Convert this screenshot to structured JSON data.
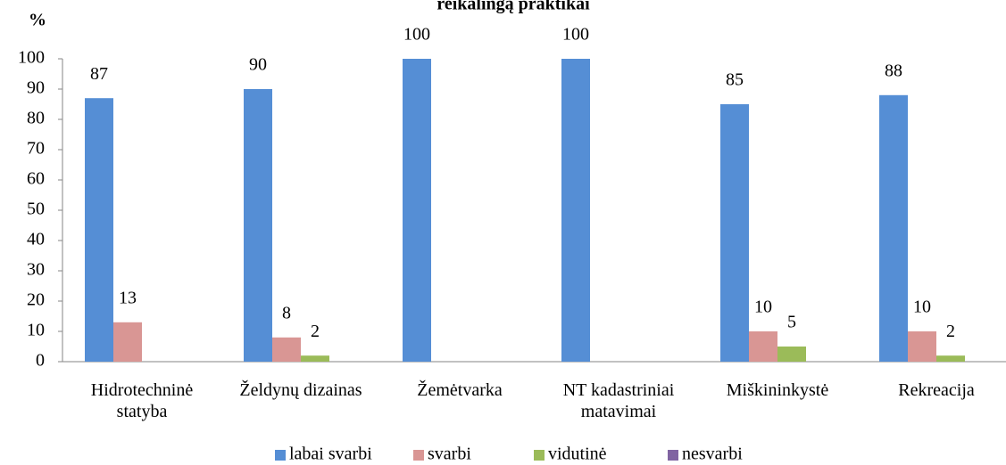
{
  "chart_data": {
    "type": "bar",
    "title": "reikalingą praktikai",
    "y_label": "%",
    "categories": [
      "Hidrotechninė statyba",
      "Želdynų dizainas",
      "Žemėtvarka",
      "NT kadastriniai matavimai",
      "Miškininkystė",
      "Rekreacija"
    ],
    "series": [
      {
        "name": "labai svarbi",
        "color": "#558ed5",
        "values": [
          87,
          90,
          100,
          100,
          85,
          88
        ]
      },
      {
        "name": "svarbi",
        "color": "#d99694",
        "values": [
          13,
          8,
          0,
          0,
          10,
          10
        ]
      },
      {
        "name": "vidutinė",
        "color": "#9bbb59",
        "values": [
          0,
          2,
          0,
          0,
          5,
          2
        ]
      },
      {
        "name": "nesvarbi",
        "color": "#8064a2",
        "values": [
          0,
          0,
          0,
          0,
          0,
          0
        ]
      }
    ],
    "ylim": [
      0,
      100
    ],
    "yticks": [
      0,
      10,
      20,
      30,
      40,
      50,
      60,
      70,
      80,
      90,
      100
    ],
    "grid": false,
    "legend": "bottom"
  }
}
